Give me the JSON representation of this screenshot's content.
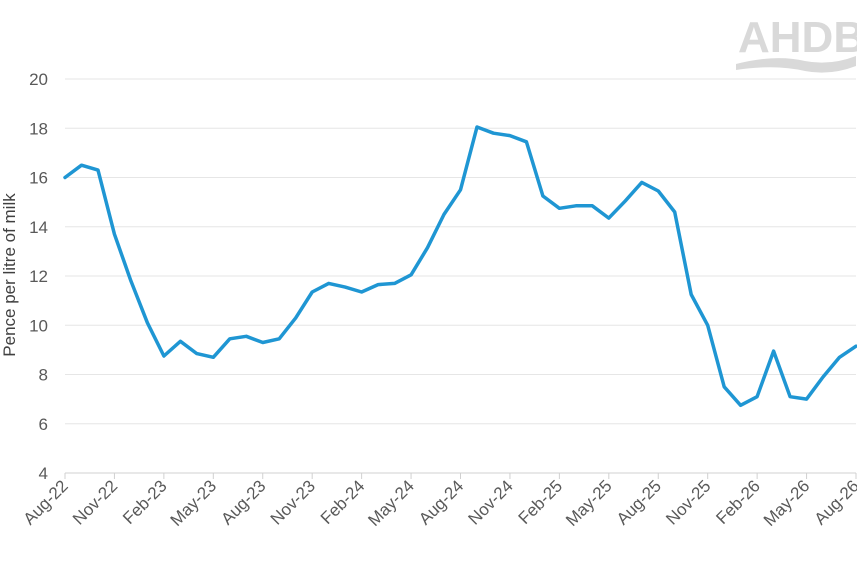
{
  "chart_data": {
    "type": "line",
    "ylabel": "Pence per litre of milk",
    "ylim": [
      4,
      20
    ],
    "yticks": [
      4,
      6,
      8,
      10,
      12,
      14,
      16,
      18,
      20
    ],
    "x_tick_labels": [
      "Aug-22",
      "Nov-22",
      "Feb-23",
      "May-23",
      "Aug-23",
      "Nov-23",
      "Feb-24",
      "May-24",
      "Aug-24",
      "Nov-24",
      "Feb-25",
      "May-25",
      "Aug-25",
      "Nov-25",
      "Feb-26",
      "May-26",
      "Aug-26"
    ],
    "grid": "horizontal",
    "legend": "none",
    "line_color": "#1f96d3",
    "series": [
      {
        "x": [
          "Aug-22",
          "Sep-22",
          "Oct-22",
          "Nov-22",
          "Dec-22",
          "Jan-23",
          "Feb-23",
          "Mar-23",
          "Apr-23",
          "May-23",
          "Jun-23",
          "Jul-23",
          "Aug-23",
          "Sep-23",
          "Oct-23",
          "Nov-23",
          "Dec-23",
          "Jan-24",
          "Feb-24",
          "Mar-24",
          "Apr-24",
          "May-24",
          "Jun-24",
          "Jul-24",
          "Aug-24",
          "Sep-24",
          "Oct-24",
          "Nov-24",
          "Dec-24",
          "Jan-25",
          "Feb-25",
          "Mar-25",
          "Apr-25",
          "May-25",
          "Jun-25",
          "Jul-25",
          "Aug-25",
          "Sep-25",
          "Oct-25",
          "Nov-25",
          "Dec-25",
          "Jan-26",
          "Feb-26",
          "Mar-26",
          "Apr-26",
          "May-26",
          "Jun-26",
          "Jul-26",
          "Aug-26"
        ],
        "values": [
          16.0,
          16.5,
          16.3,
          13.7,
          11.8,
          10.1,
          8.75,
          9.35,
          8.85,
          8.7,
          9.45,
          9.55,
          9.3,
          9.45,
          10.3,
          11.35,
          11.7,
          11.55,
          11.35,
          11.65,
          11.7,
          12.05,
          13.15,
          14.5,
          15.5,
          18.05,
          17.8,
          17.7,
          17.45,
          15.25,
          14.75,
          14.85,
          14.85,
          14.35,
          15.05,
          15.8,
          15.45,
          14.6,
          11.25,
          10.0,
          7.5,
          6.75,
          7.1,
          8.95,
          7.1,
          7.0,
          7.9,
          8.7,
          9.15
        ]
      }
    ]
  },
  "branding": {
    "logo_text": "AHDB"
  }
}
